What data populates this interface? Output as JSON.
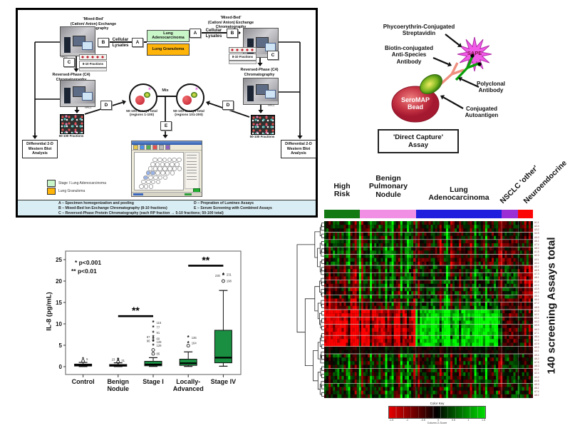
{
  "flowchart": {
    "mixed_bed_title": "'Mixed-Bed'\n(Cation/ Anion) Exchange\nChromatography",
    "rp_title": "Reversed-Phase (C4)\nChromatography",
    "samples": {
      "adeno": "Lung Adenocarcinoma",
      "adeno_color": "#c9f6c9",
      "granuloma": "Lung Granuloma",
      "granuloma_color": "#ffb40a"
    },
    "steps": {
      "a": "A",
      "b": "B",
      "c": "C",
      "d": "D",
      "e": "E"
    },
    "cellular_lysates": "Cellular\nLysates",
    "hplc_caption": "HPLC",
    "fractions_small": "8-10 Fractions",
    "fractions_large": "50-100 Fractions",
    "assays_left": "50-100 assays total\n(regions 1-100)",
    "assays_right": "50-100 assays total\n(regions 101-200)",
    "mix_label": "Mix",
    "western_label": "Differential 2-D\nWestern Blot\nAnalysis",
    "legend": [
      {
        "label": "Stage I Lung Adenocarcinoma",
        "color": "#c9f6c9"
      },
      {
        "label": "Lung Granuloma",
        "color": "#ffb40a"
      }
    ],
    "key_left": [
      "A – Specimen homogenization and pooling",
      "B – Mixed-Bed Ion Exchange Chromatography (8-10 fractions)",
      "C – Reversed-Phase Protein Chromatography (each RP fraction → 5-10 fractions; 50-100 total)"
    ],
    "key_right": [
      "D – Prepration of Luminex Assays",
      "E – Serum Screening with Combined Assays"
    ]
  },
  "assay": {
    "callout_streptavidin": "Phycoerythrin-Conjugated\nStreptavidin",
    "callout_biotin": "Biotin-conjugated\nAnti-Species\nAntibody",
    "callout_polyclonal": "Polyclonal\nAntibody",
    "callout_autoantigen": "Conjugated\nAutoantigen",
    "sape_label": "SAPE",
    "bead_label": "SeroMAP\nBead",
    "title": "'Direct Capture'\nAssay"
  },
  "chart_data": [
    {
      "type": "box",
      "ylabel": "IL-8 (pg/mL)",
      "yticks": [
        0,
        5,
        10,
        15,
        20,
        25
      ],
      "ylim": [
        -2,
        27
      ],
      "categories": [
        "Control",
        "Benign\nNodule",
        "Stage I",
        "Locally-\nAdvanced",
        "Stage IV"
      ],
      "sig_note": [
        "* p<0.001",
        "** p<0.01"
      ],
      "box_color": "#1a8f42",
      "boxes": [
        {
          "lo": 0.02,
          "q1": 0.15,
          "med": 0.35,
          "q3": 0.6,
          "hi": 1.0,
          "outliers": [
            {
              "v": 1.3,
              "s": "o"
            },
            {
              "v": 1.75,
              "s": "*",
              "label": "5",
              "side": "r"
            }
          ]
        },
        {
          "lo": 0.02,
          "q1": 0.1,
          "med": 0.3,
          "q3": 0.5,
          "hi": 0.9,
          "outliers": [
            {
              "v": 1.1,
              "s": "o"
            },
            {
              "v": 1.45,
              "s": "*",
              "label": "31",
              "side": "r"
            },
            {
              "v": 1.7,
              "s": "*",
              "label": "23",
              "side": "l"
            }
          ]
        },
        {
          "lo": 0.05,
          "q1": 0.2,
          "med": 0.5,
          "q3": 1.25,
          "hi": 2.1,
          "outliers": [
            {
              "v": 3.0,
              "s": "o",
              "label": "85",
              "side": "r"
            },
            {
              "v": 3.9,
              "s": "o"
            },
            {
              "v": 4.9,
              "s": "*",
              "label": "129",
              "side": "r"
            },
            {
              "v": 5.8,
              "s": "*",
              "label": "129",
              "side": "r"
            },
            {
              "v": 6.0,
              "s": "*",
              "label": "96",
              "side": "l"
            },
            {
              "v": 6.5,
              "s": "*",
              "label": "60",
              "side": "r"
            },
            {
              "v": 6.9,
              "s": "*",
              "label": "67",
              "side": "l"
            },
            {
              "v": 7.9,
              "s": "*",
              "label": "91",
              "side": "r"
            },
            {
              "v": 9.2,
              "s": "*",
              "label": "77",
              "side": "r"
            },
            {
              "v": 10.3,
              "s": "*",
              "label": "116",
              "side": "r"
            }
          ]
        },
        {
          "lo": 0.05,
          "q1": 0.3,
          "med": 0.8,
          "q3": 1.75,
          "hi": 3.45,
          "outliers": [
            {
              "v": 4.9,
              "s": "o"
            },
            {
              "v": 5.5,
              "s": "*",
              "label": "164",
              "side": "r"
            },
            {
              "v": 6.8,
              "s": "*",
              "label": "136",
              "side": "r"
            }
          ]
        },
        {
          "lo": 0.1,
          "q1": 0.9,
          "med": 2.1,
          "q3": 8.5,
          "hi": 17.8,
          "outliers": [
            {
              "v": 20.0,
              "s": "o",
              "label": "198",
              "side": "r"
            },
            {
              "v": 21.3,
              "s": "*",
              "label": "230",
              "side": "l"
            },
            {
              "v": 21.5,
              "s": "*",
              "label": "231",
              "side": "r"
            }
          ]
        }
      ],
      "significance": [
        {
          "from": 1,
          "to": 2,
          "y": 11.8,
          "label": "**"
        },
        {
          "from": 3,
          "to": 4,
          "y": 23.6,
          "label": "**"
        }
      ]
    },
    {
      "type": "heatmap",
      "rows": 48,
      "cols": 96,
      "side_label": "140 screening Assays total",
      "col_groups": [
        {
          "label": "High\nRisk",
          "color": "#137a13",
          "frac": 0.17
        },
        {
          "label": "Benign\nPulmonary\nNodule",
          "color": "#f18fe4",
          "frac": 0.27
        },
        {
          "label": "Lung\nAdenocarcinoma",
          "color": "#1f1fdd",
          "frac": 0.41
        },
        {
          "label": "NSCLC 'other'",
          "color": "#9a2fd6",
          "frac": 0.08
        },
        {
          "label": "Neuroendocrine",
          "color": "#fb0507",
          "frac": 0.07
        }
      ],
      "palette": {
        "low": "#e80000",
        "mid": "#000000",
        "high": "#00dd00"
      },
      "color_key": {
        "title": "Color Key",
        "caption": "Column Z-Score",
        "ticks": [
          "-1.5",
          "-1",
          "-0.5",
          "0",
          "0.5",
          "1",
          "1.5"
        ]
      },
      "row_blocks": [
        {
          "from": 0,
          "to": 4,
          "bias": {
            "hr": 0.1,
            "bpn": 0.05,
            "la": 0,
            "ns": 0,
            "ne": 0.1
          }
        },
        {
          "from": 5,
          "to": 11,
          "bias": {
            "hr": 0.25,
            "bpn": 0.15,
            "la": -0.15,
            "ns": -0.35,
            "ne": 0.25
          }
        },
        {
          "from": 12,
          "to": 20,
          "bias": {
            "hr": -0.25,
            "bpn": 0.1,
            "la": 0.15,
            "ns": 0.3,
            "ne": -0.35
          }
        },
        {
          "from": 21,
          "to": 23,
          "bias": {
            "hr": -0.5,
            "bpn": -0.25,
            "la": 0.3,
            "ns": -0.2,
            "ne": -0.15
          }
        },
        {
          "from": 24,
          "to": 33,
          "bias": {
            "hr": -1.1,
            "bpn": -1.0,
            "la": 1.1,
            "ns": -0.35,
            "ne": 0.1
          }
        },
        {
          "from": 34,
          "to": 35,
          "bias": {
            "hr": -0.1,
            "bpn": -0.1,
            "la": -0.1,
            "ns": -0.1,
            "ne": -0.1
          },
          "dark": true
        },
        {
          "from": 36,
          "to": 47,
          "bias": {
            "hr": 0.2,
            "bpn": 0.05,
            "la": 0.05,
            "ns": 0.15,
            "ne": 0.3
          }
        }
      ],
      "separators": [
        3,
        5,
        7,
        9,
        12,
        14,
        16,
        18,
        20,
        22,
        24,
        26,
        28,
        31,
        34,
        36,
        40,
        44
      ]
    }
  ]
}
